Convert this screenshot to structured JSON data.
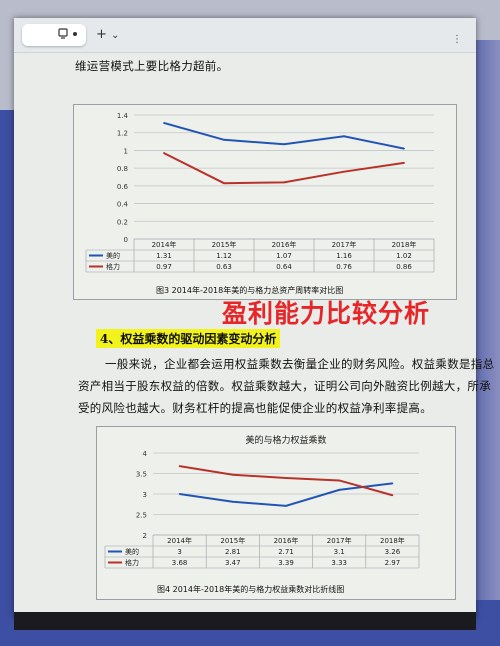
{
  "toolbar": {
    "plus": "+",
    "chevron": "⌄",
    "more": "⋮"
  },
  "doc": {
    "top_line": "维运营模式上要比格力超前。",
    "section_heading": "4、权益乘数的驱动因素变动分析",
    "overlay_text": "盈利能力比较分析",
    "para_line1": "一般来说，企业都会运用权益乘数去衡量企业的财务风险。权益乘数是指总",
    "para_line2": "资产相当于股东权益的倍数。权益乘数越大，证明公司向外融资比例越大，所承",
    "para_line3": "受的风险也越大。财务杠杆的提高也能促使企业的权益净利率提高。"
  },
  "chart_data": [
    {
      "type": "line",
      "title": "",
      "caption": "图3    2014年-2018年美的与格力总资产周转率对比图",
      "categories": [
        "2014年",
        "2015年",
        "2016年",
        "2017年",
        "2018年"
      ],
      "ylim": [
        0,
        1.4
      ],
      "yticks": [
        "0",
        "0.2",
        "0.4",
        "0.6",
        "0.8",
        "1",
        "1.2",
        "1.4"
      ],
      "grid": true,
      "legend": "table-below",
      "series": [
        {
          "name": "美的",
          "color": "#2155b5",
          "values": [
            1.31,
            1.12,
            1.07,
            1.16,
            1.02
          ],
          "labels": [
            "1.31",
            "1.12",
            "1.07",
            "1.16",
            "1.02"
          ]
        },
        {
          "name": "格力",
          "color": "#b8322a",
          "values": [
            0.97,
            0.63,
            0.64,
            0.76,
            0.86
          ],
          "labels": [
            "0.97",
            "0.63",
            "0.64",
            "0.76",
            "0.86"
          ]
        }
      ]
    },
    {
      "type": "line",
      "title": "美的与格力权益乘数",
      "caption": "图4   2014年-2018年美的与格力权益乘数对比折线图",
      "categories": [
        "2014年",
        "2015年",
        "2016年",
        "2017年",
        "2018年"
      ],
      "ylim": [
        2,
        4
      ],
      "yticks": [
        "2",
        "2.5",
        "3",
        "3.5",
        "4"
      ],
      "grid": true,
      "legend": "table-below",
      "series": [
        {
          "name": "美的",
          "color": "#2155b5",
          "values": [
            3,
            2.81,
            2.71,
            3.1,
            3.26
          ],
          "labels": [
            "3",
            "2.81",
            "2.71",
            "3.1",
            "3.26"
          ]
        },
        {
          "name": "格力",
          "color": "#b8322a",
          "values": [
            3.68,
            3.47,
            3.39,
            3.33,
            2.97
          ],
          "labels": [
            "3.68",
            "3.47",
            "3.39",
            "3.33",
            "2.97"
          ]
        }
      ]
    }
  ]
}
